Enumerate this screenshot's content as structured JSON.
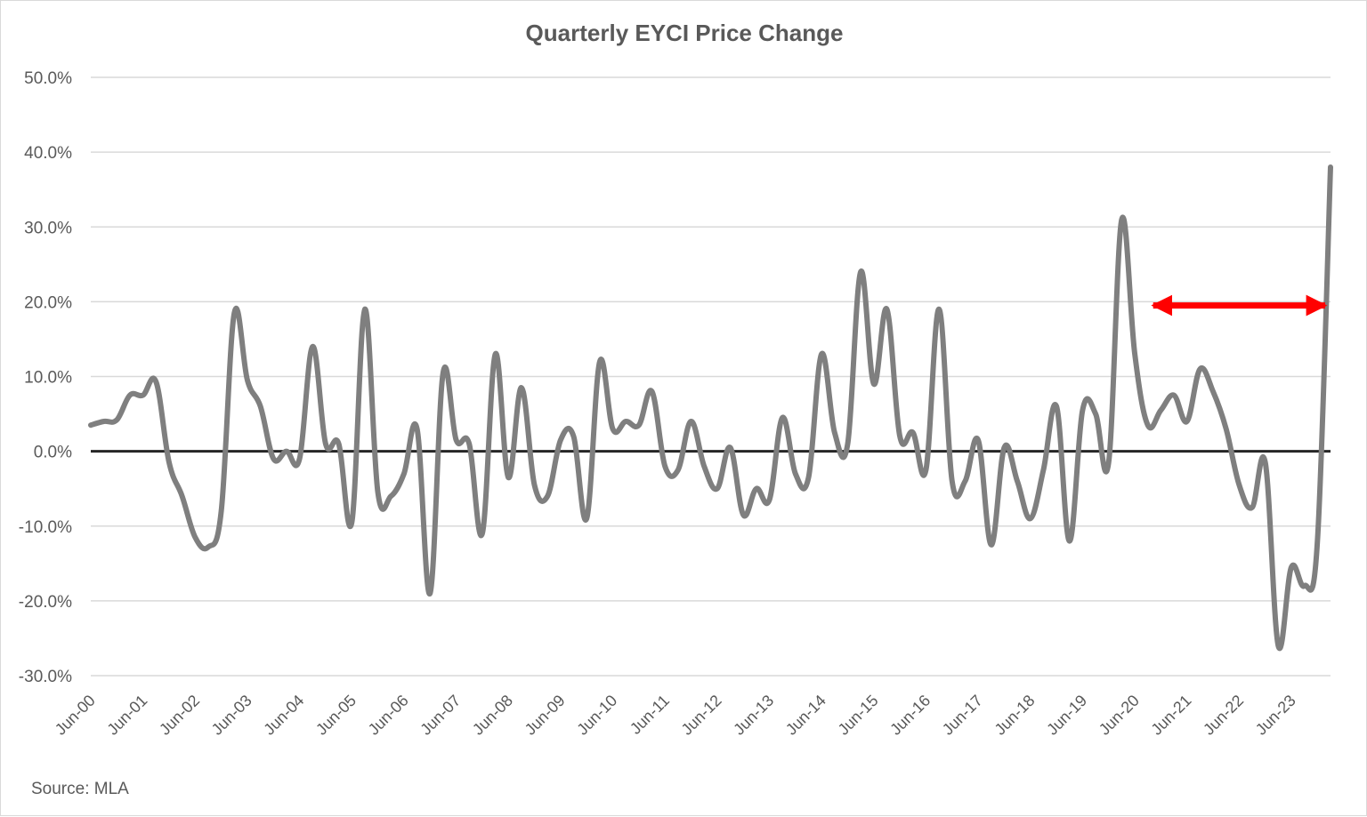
{
  "chart_data": {
    "type": "line",
    "title": "Quarterly EYCI Price Change",
    "source": "Source: MLA",
    "xlabel": "",
    "ylabel": "",
    "ylim": [
      -30,
      50
    ],
    "y_tick_values": [
      -30,
      -20,
      -10,
      0,
      10,
      20,
      30,
      40,
      50
    ],
    "y_tick_labels": [
      "-30.0%",
      "-20.0%",
      "-10.0%",
      "0.0%",
      "10.0%",
      "20.0%",
      "30.0%",
      "40.0%",
      "50.0%"
    ],
    "x_tick_labels": [
      "Jun-00",
      "Jun-01",
      "Jun-02",
      "Jun-03",
      "Jun-04",
      "Jun-05",
      "Jun-06",
      "Jun-07",
      "Jun-08",
      "Jun-09",
      "Jun-10",
      "Jun-11",
      "Jun-12",
      "Jun-13",
      "Jun-14",
      "Jun-15",
      "Jun-16",
      "Jun-17",
      "Jun-18",
      "Jun-19",
      "Jun-20",
      "Jun-21",
      "Jun-22",
      "Jun-23"
    ],
    "grid": true,
    "zero_line": true,
    "series": [
      {
        "color": "#7f7f7f",
        "values": [
          3.5,
          4,
          4.2,
          7.5,
          7.5,
          9.3,
          -1.5,
          -6,
          -11.5,
          -12.8,
          -8,
          18.5,
          9.5,
          6,
          -1,
          0,
          -1,
          14,
          1,
          1,
          -9.5,
          19,
          -5.5,
          -6,
          -3,
          3,
          -19,
          10.5,
          1.5,
          1,
          -11,
          13,
          -3.5,
          8.5,
          -4.5,
          -6,
          1.5,
          2,
          -9,
          12,
          3,
          4,
          3.5,
          8,
          -2,
          -2.5,
          4,
          -2,
          -5,
          0.5,
          -8.5,
          -5,
          -6.5,
          4.5,
          -3,
          -3.5,
          13,
          2.5,
          1,
          24,
          9,
          19,
          2,
          2.5,
          -2.5,
          19,
          -4,
          -4,
          1.5,
          -12.5,
          0.5,
          -4,
          -9,
          -2.5,
          6,
          -12,
          5.5,
          5,
          -1.5,
          31,
          13,
          3.5,
          5.5,
          7.5,
          4,
          11,
          8,
          3,
          -4.5,
          -7.5,
          -1.5,
          -26,
          -15.5,
          -18,
          -12,
          38
        ]
      }
    ],
    "annotation": {
      "type": "double-arrow",
      "color": "#ff0000",
      "y": 19.5,
      "x_from": 81,
      "x_to": 95
    }
  }
}
